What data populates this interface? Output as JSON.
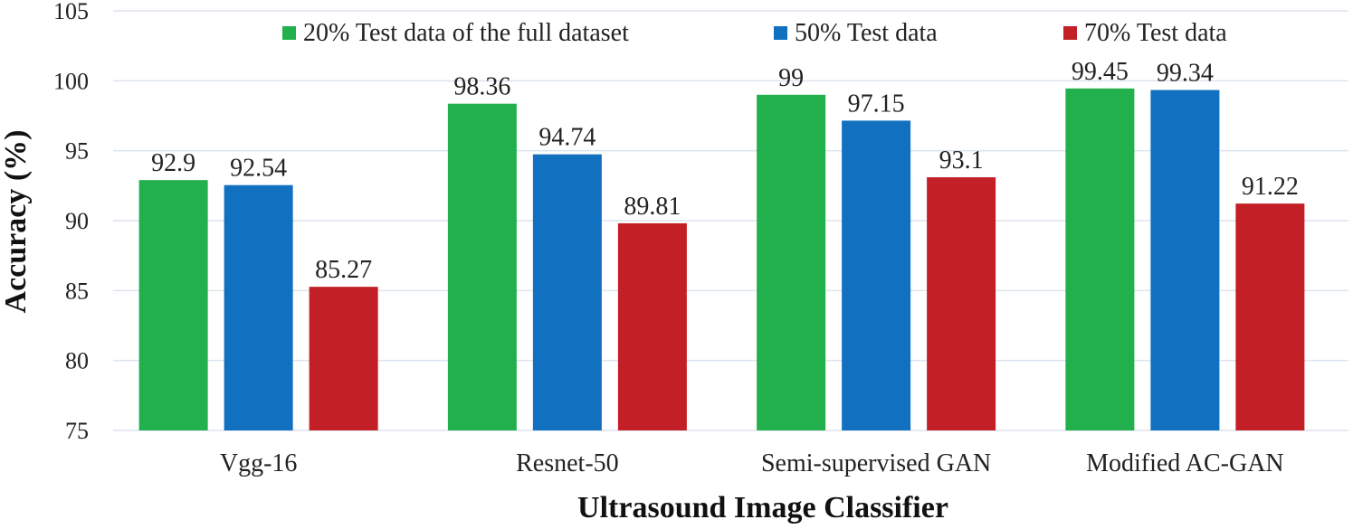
{
  "chart_data": {
    "type": "bar",
    "title": "",
    "xlabel": "Ultrasound Image Classifier",
    "ylabel": "Accuracy (%)",
    "ylim": [
      75,
      105
    ],
    "yticks": [
      75,
      80,
      85,
      90,
      95,
      100,
      105
    ],
    "grid": true,
    "legend_position": "top",
    "categories": [
      "Vgg-16",
      "Resnet-50",
      "Semi-supervised GAN",
      "Modified AC-GAN"
    ],
    "series": [
      {
        "name": "20% Test data of the full dataset",
        "color": "#21b04b",
        "values": [
          92.9,
          98.36,
          99,
          99.45
        ]
      },
      {
        "name": "50% Test data",
        "color": "#1170bf",
        "values": [
          92.54,
          94.74,
          97.15,
          99.34
        ]
      },
      {
        "name": "70% Test data",
        "color": "#c21f27",
        "values": [
          85.27,
          89.81,
          93.1,
          91.22
        ]
      }
    ]
  }
}
